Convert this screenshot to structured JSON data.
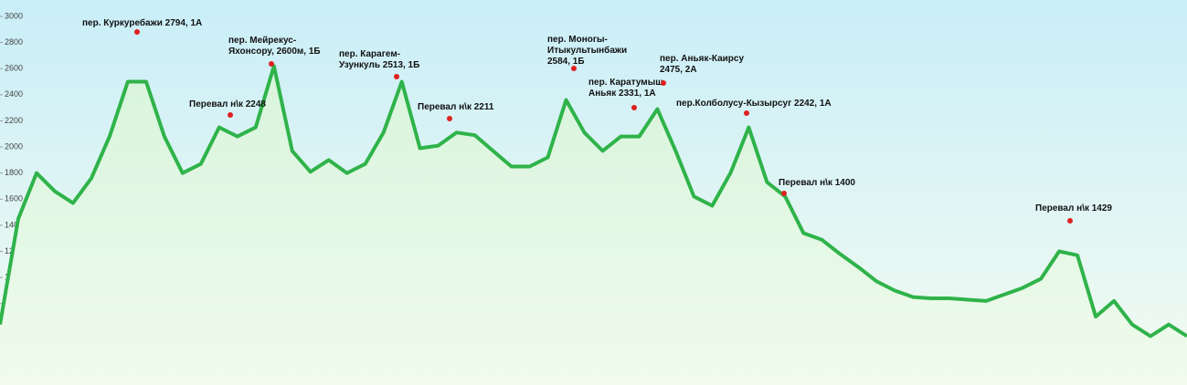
{
  "chart_data": {
    "type": "line",
    "values": [
      640,
      1450,
      1800,
      1660,
      1570,
      1760,
      2080,
      2500,
      2500,
      2080,
      1800,
      1870,
      2150,
      2080,
      2150,
      2620,
      1970,
      1810,
      1900,
      1800,
      1870,
      2110,
      2500,
      1990,
      2010,
      2110,
      2090,
      1970,
      1850,
      1850,
      1920,
      2360,
      2110,
      1970,
      2080,
      2080,
      2290,
      1970,
      1620,
      1550,
      1800,
      2150,
      1730,
      1620,
      1340,
      1290,
      1180,
      1080,
      970,
      900,
      850,
      840,
      840,
      830,
      820,
      870,
      920,
      990,
      1200,
      1170,
      700,
      820,
      640,
      550,
      640,
      550
    ],
    "color": "#2fb34a",
    "ylim": [
      400,
      3000
    ],
    "yticks": [
      400,
      600,
      800,
      1000,
      1200,
      1400,
      1600,
      1800,
      2000,
      2200,
      2400,
      2600,
      2800,
      3000
    ],
    "annotations": [
      {
        "lines": [
          "пер. Куркуребажи 2794, 1А"
        ]
      },
      {
        "lines": [
          "Перевал н\\к 2248"
        ]
      },
      {
        "lines": [
          "пер. Мейрекус-",
          "Яхонсору, 2600м, 1Б"
        ]
      },
      {
        "lines": [
          "пер. Карагем-",
          "Узункуль 2513, 1Б"
        ]
      },
      {
        "lines": [
          "Перевал н\\к 2211"
        ]
      },
      {
        "lines": [
          "пер. Моногы-",
          "Итыкультынбажи",
          "2584, 1Б"
        ]
      },
      {
        "lines": [
          "пер. Каратумыш-",
          "Аньяк 2331, 1А"
        ]
      },
      {
        "lines": [
          "пер. Аньяк-Каирсу",
          "2475, 2А"
        ]
      },
      {
        "lines": [
          "пер.Колболусу-Кызырсуг 2242, 1А"
        ]
      },
      {
        "lines": [
          "Перевал н\\к 1400"
        ]
      },
      {
        "lines": [
          "Перевал н\\к 1429"
        ]
      }
    ]
  }
}
